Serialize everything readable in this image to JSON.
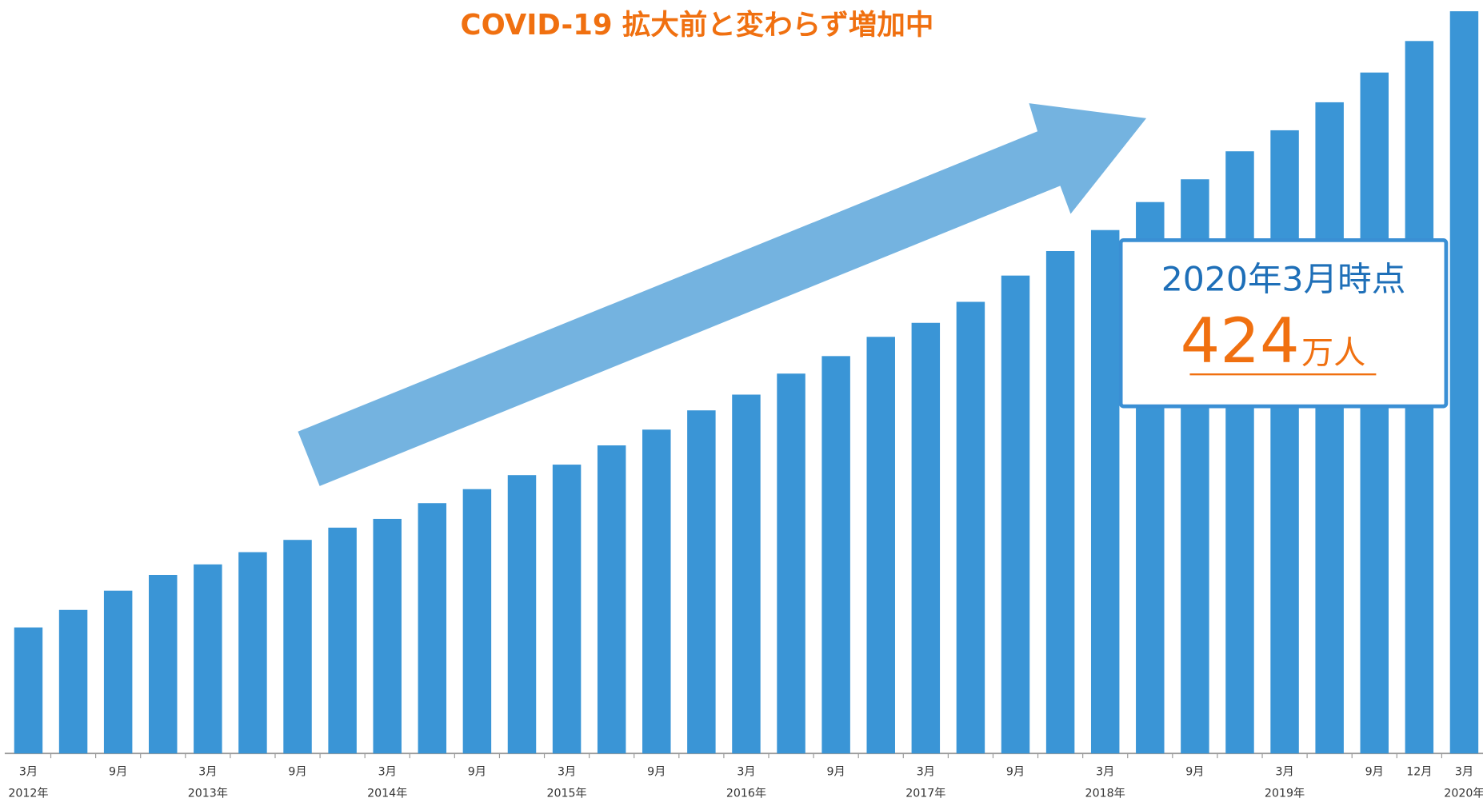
{
  "chart_data": {
    "type": "bar",
    "title": "COVID-19 拡大前と変わらず増加中",
    "categories": [
      "3月",
      null,
      "9月",
      null,
      "3月",
      null,
      "9月",
      null,
      "3月",
      null,
      "9月",
      null,
      "3月",
      null,
      "9月",
      null,
      "3月",
      null,
      "9月",
      null,
      "3月",
      null,
      "9月",
      null,
      "3月",
      null,
      "9月",
      null,
      "3月",
      null,
      "9月",
      "12月",
      "3月"
    ],
    "year_labels": [
      "2012年",
      null,
      null,
      null,
      "2013年",
      null,
      null,
      null,
      "2014年",
      null,
      null,
      null,
      "2015年",
      null,
      null,
      null,
      "2016年",
      null,
      null,
      null,
      "2017年",
      null,
      null,
      null,
      "2018年",
      null,
      null,
      null,
      "2019年",
      null,
      null,
      null,
      "2020年"
    ],
    "values": [
      72,
      82,
      93,
      102,
      108,
      115,
      122,
      129,
      134,
      143,
      151,
      159,
      165,
      176,
      185,
      196,
      205,
      217,
      227,
      238,
      246,
      258,
      273,
      287,
      299,
      315,
      328,
      344,
      356,
      372,
      389,
      407,
      424
    ],
    "color": "#3a95d6",
    "annotation": {
      "label": "2020年3月時点",
      "value": 424,
      "unit": "万人"
    }
  }
}
